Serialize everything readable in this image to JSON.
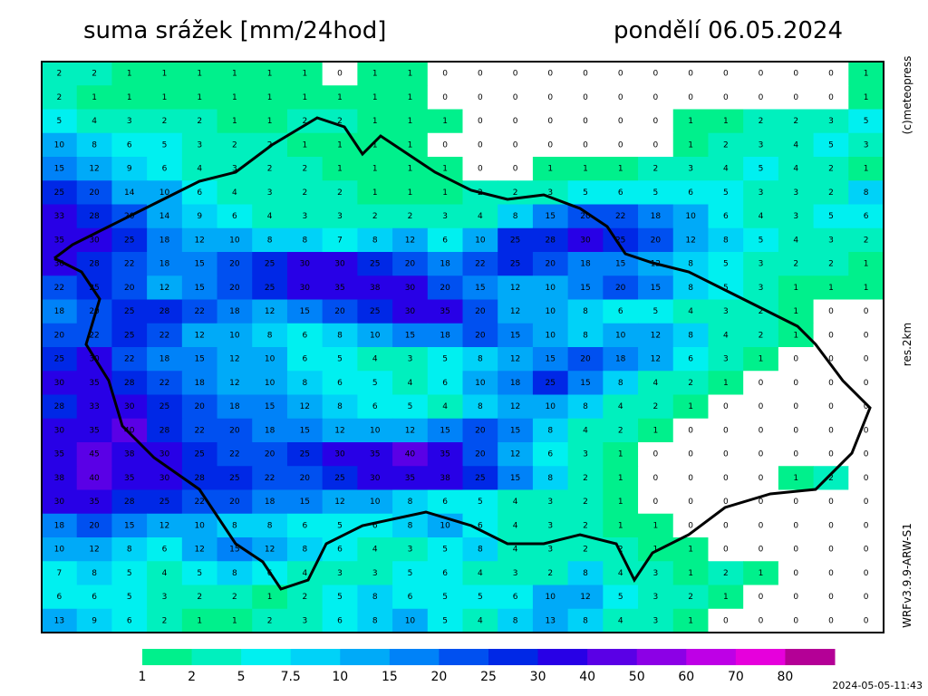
{
  "header": {
    "title": "suma srážek [mm/24hod]",
    "date": "pondělí 06.05.2024"
  },
  "side_labels": {
    "copyright": "(c)meteopress",
    "resolution": "res.2km",
    "model": "WRFv3.9.9-ARW-S1"
  },
  "timestamp": "2024-05-05-11:43",
  "legend": {
    "values": [
      1,
      2,
      5,
      7.5,
      10,
      15,
      20,
      25,
      30,
      40,
      50,
      60,
      70,
      80
    ],
    "colors": [
      "#00f08c",
      "#00f0be",
      "#00f0f0",
      "#00d2f8",
      "#00aaf8",
      "#0082f8",
      "#0050f0",
      "#0028e6",
      "#2800e6",
      "#5a00e6",
      "#8c00e6",
      "#be00e6",
      "#e600dc",
      "#b40096"
    ]
  },
  "grid": {
    "rows": [
      [
        2,
        2,
        1,
        1,
        1,
        1,
        1,
        1,
        0,
        1,
        1,
        0,
        0,
        0,
        0,
        0,
        0,
        0,
        0,
        0,
        0,
        0,
        0,
        1
      ],
      [
        2,
        1,
        1,
        1,
        1,
        1,
        1,
        1,
        1,
        1,
        1,
        0,
        0,
        0,
        0,
        0,
        0,
        0,
        0,
        0,
        0,
        0,
        0,
        1
      ],
      [
        5,
        4,
        3,
        2,
        2,
        1,
        1,
        2,
        2,
        1,
        1,
        1,
        0,
        0,
        0,
        0,
        0,
        0,
        1,
        1,
        2,
        2,
        3,
        5
      ],
      [
        10,
        8,
        6,
        5,
        3,
        2,
        2,
        1,
        1,
        1,
        1,
        0,
        0,
        0,
        0,
        0,
        0,
        0,
        1,
        2,
        3,
        4,
        5,
        3
      ],
      [
        15,
        12,
        9,
        6,
        4,
        3,
        2,
        2,
        1,
        1,
        1,
        1,
        0,
        0,
        1,
        1,
        1,
        2,
        3,
        4,
        5,
        4,
        2,
        1
      ],
      [
        25,
        20,
        14,
        10,
        6,
        4,
        3,
        2,
        2,
        1,
        1,
        1,
        2,
        2,
        3,
        5,
        6,
        5,
        6,
        5,
        3,
        3,
        2,
        8
      ],
      [
        33,
        28,
        20,
        14,
        9,
        6,
        4,
        3,
        3,
        2,
        2,
        3,
        4,
        8,
        15,
        20,
        22,
        18,
        10,
        6,
        4,
        3,
        5,
        6
      ],
      [
        35,
        30,
        25,
        18,
        12,
        10,
        8,
        8,
        7,
        8,
        12,
        6,
        10,
        25,
        28,
        30,
        25,
        20,
        12,
        8,
        5,
        4,
        3,
        2
      ],
      [
        30,
        28,
        22,
        18,
        15,
        20,
        25,
        30,
        30,
        25,
        20,
        18,
        22,
        25,
        20,
        18,
        15,
        12,
        8,
        5,
        3,
        2,
        2,
        1
      ],
      [
        22,
        25,
        20,
        12,
        15,
        20,
        25,
        30,
        35,
        38,
        30,
        20,
        15,
        12,
        10,
        15,
        20,
        15,
        8,
        5,
        3,
        1,
        1,
        1
      ],
      [
        18,
        20,
        25,
        28,
        22,
        18,
        12,
        15,
        20,
        25,
        30,
        35,
        20,
        12,
        10,
        8,
        6,
        5,
        4,
        3,
        2,
        1,
        0,
        0
      ],
      [
        20,
        22,
        25,
        22,
        12,
        10,
        8,
        6,
        8,
        10,
        15,
        18,
        20,
        15,
        10,
        8,
        10,
        12,
        8,
        4,
        2,
        1,
        0,
        0
      ],
      [
        25,
        30,
        22,
        18,
        15,
        12,
        10,
        6,
        5,
        4,
        3,
        5,
        8,
        12,
        15,
        20,
        18,
        12,
        6,
        3,
        1,
        0,
        0,
        0
      ],
      [
        30,
        35,
        28,
        22,
        18,
        12,
        10,
        8,
        6,
        5,
        4,
        6,
        10,
        18,
        25,
        15,
        8,
        4,
        2,
        1,
        0,
        0,
        0,
        0
      ],
      [
        28,
        33,
        30,
        25,
        20,
        18,
        15,
        12,
        8,
        6,
        5,
        4,
        8,
        12,
        10,
        8,
        4,
        2,
        1,
        0,
        0,
        0,
        0,
        0
      ],
      [
        30,
        35,
        40,
        28,
        22,
        20,
        18,
        15,
        12,
        10,
        12,
        15,
        20,
        15,
        8,
        4,
        2,
        1,
        0,
        0,
        0,
        0,
        0,
        0
      ],
      [
        35,
        45,
        38,
        30,
        25,
        22,
        20,
        25,
        30,
        35,
        40,
        35,
        20,
        12,
        6,
        3,
        1,
        0,
        0,
        0,
        0,
        0,
        0,
        0
      ],
      [
        38,
        40,
        35,
        30,
        28,
        25,
        22,
        20,
        25,
        30,
        35,
        38,
        25,
        15,
        8,
        2,
        1,
        0,
        0,
        0,
        0,
        1,
        2,
        0
      ],
      [
        30,
        35,
        28,
        25,
        22,
        20,
        18,
        15,
        12,
        10,
        8,
        6,
        5,
        4,
        3,
        2,
        1,
        0,
        0,
        0,
        0,
        0,
        0,
        0
      ],
      [
        18,
        20,
        15,
        12,
        10,
        8,
        8,
        6,
        5,
        6,
        8,
        10,
        6,
        4,
        3,
        2,
        1,
        1,
        0,
        0,
        0,
        0,
        0,
        0
      ],
      [
        10,
        12,
        8,
        6,
        12,
        15,
        12,
        8,
        6,
        4,
        3,
        5,
        8,
        4,
        3,
        2,
        2,
        1,
        1,
        0,
        0,
        0,
        0,
        0
      ],
      [
        7,
        8,
        5,
        4,
        5,
        8,
        6,
        4,
        3,
        3,
        5,
        6,
        4,
        3,
        2,
        8,
        4,
        3,
        1,
        2,
        1,
        0,
        0,
        0
      ],
      [
        6,
        6,
        5,
        3,
        2,
        2,
        1,
        2,
        5,
        8,
        6,
        5,
        5,
        6,
        10,
        12,
        5,
        3,
        2,
        1,
        0,
        0,
        0,
        0
      ],
      [
        13,
        9,
        6,
        2,
        1,
        1,
        2,
        3,
        6,
        8,
        10,
        5,
        4,
        8,
        13,
        8,
        4,
        3,
        1,
        0,
        0,
        0,
        0,
        0
      ]
    ]
  }
}
